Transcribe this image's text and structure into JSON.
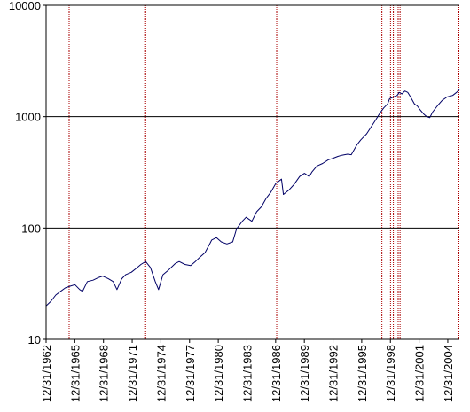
{
  "chart_data": {
    "type": "line",
    "title": "",
    "xlabel": "",
    "ylabel": "",
    "y_scale": "log",
    "ylim": [
      10,
      10000
    ],
    "y_ticks": [
      {
        "value": 10,
        "label": "10"
      },
      {
        "value": 100,
        "label": "100"
      },
      {
        "value": 1000,
        "label": "1000"
      },
      {
        "value": 10000,
        "label": "10000"
      }
    ],
    "x_range": [
      1962.99,
      2006.2
    ],
    "x_ticks": [
      {
        "value": 1962.99,
        "label": "12/31/1962"
      },
      {
        "value": 1965.99,
        "label": "12/31/1965"
      },
      {
        "value": 1968.99,
        "label": "12/31/1968"
      },
      {
        "value": 1971.99,
        "label": "12/31/1971"
      },
      {
        "value": 1974.99,
        "label": "12/31/1974"
      },
      {
        "value": 1977.99,
        "label": "12/31/1977"
      },
      {
        "value": 1980.99,
        "label": "12/31/1980"
      },
      {
        "value": 1983.99,
        "label": "12/31/1983"
      },
      {
        "value": 1986.99,
        "label": "12/31/1986"
      },
      {
        "value": 1989.99,
        "label": "12/31/1989"
      },
      {
        "value": 1992.99,
        "label": "12/31/1992"
      },
      {
        "value": 1995.99,
        "label": "12/31/1995"
      },
      {
        "value": 1998.99,
        "label": "12/31/1998"
      },
      {
        "value": 2001.99,
        "label": "12/31/2001"
      },
      {
        "value": 2004.99,
        "label": "12/31/2004"
      }
    ],
    "gridlines": [
      100,
      1000
    ],
    "event_lines": [
      1965.4,
      1973.3,
      1973.4,
      1987.1,
      1998.1,
      1999.0,
      1999.3,
      1999.8,
      2000.0,
      2006.2
    ],
    "series": [
      {
        "color": "#000066",
        "x": [
          1962.99,
          1963.5,
          1964.0,
          1964.5,
          1965.0,
          1965.5,
          1966.0,
          1966.5,
          1966.8,
          1967.3,
          1967.9,
          1968.5,
          1968.9,
          1969.5,
          1970.0,
          1970.4,
          1970.9,
          1971.3,
          1971.9,
          1972.5,
          1972.9,
          1973.4,
          1973.9,
          1974.4,
          1974.75,
          1975.2,
          1975.8,
          1976.5,
          1976.9,
          1977.5,
          1978.1,
          1978.6,
          1979.1,
          1979.6,
          1980.1,
          1980.3,
          1980.8,
          1981.3,
          1981.9,
          1982.5,
          1982.9,
          1983.5,
          1983.9,
          1984.5,
          1985.0,
          1985.5,
          1986.0,
          1986.5,
          1987.0,
          1987.6,
          1987.8,
          1988.4,
          1988.9,
          1989.5,
          1990.0,
          1990.5,
          1990.8,
          1991.3,
          1991.9,
          1992.5,
          1992.9,
          1993.5,
          1993.9,
          1994.5,
          1994.9,
          1995.5,
          1995.9,
          1996.5,
          1996.9,
          1997.5,
          1997.9,
          1998.3,
          1998.7,
          1998.9,
          1999.3,
          1999.7,
          1999.9,
          2000.2,
          2000.5,
          2000.8,
          2001.1,
          2001.5,
          2001.8,
          2002.1,
          2002.5,
          2002.8,
          2003.1,
          2003.4,
          2003.9,
          2004.4,
          2004.9,
          2005.5,
          2005.9,
          2006.2
        ],
        "y": [
          20,
          22,
          25,
          27,
          29,
          30,
          31,
          28,
          27,
          33,
          34,
          36,
          37,
          35,
          33,
          28,
          35,
          38,
          40,
          44,
          47,
          50,
          44,
          33,
          28,
          38,
          42,
          48,
          50,
          47,
          46,
          50,
          55,
          60,
          72,
          78,
          82,
          75,
          72,
          75,
          98,
          115,
          125,
          115,
          140,
          155,
          185,
          210,
          250,
          275,
          200,
          220,
          245,
          290,
          310,
          290,
          320,
          360,
          380,
          410,
          420,
          440,
          450,
          460,
          455,
          560,
          620,
          700,
          790,
          950,
          1080,
          1200,
          1300,
          1450,
          1500,
          1550,
          1650,
          1600,
          1700,
          1650,
          1500,
          1300,
          1250,
          1150,
          1050,
          1000,
          980,
          1100,
          1250,
          1400,
          1500,
          1550,
          1650,
          1750
        ]
      }
    ]
  }
}
